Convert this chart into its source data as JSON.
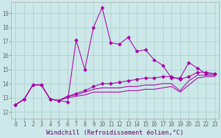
{
  "background_color": "#cce8e8",
  "grid_color": "#aacccc",
  "line_color": "#aa00aa",
  "x_values": [
    0,
    1,
    2,
    3,
    4,
    5,
    6,
    7,
    8,
    9,
    10,
    11,
    12,
    13,
    14,
    15,
    16,
    17,
    18,
    19,
    20,
    21,
    22,
    23
  ],
  "series1": [
    12.5,
    12.9,
    13.9,
    13.9,
    12.9,
    12.8,
    12.7,
    17.1,
    15.0,
    18.0,
    19.4,
    16.9,
    16.8,
    17.3,
    16.3,
    16.4,
    15.7,
    15.3,
    14.4,
    14.4,
    15.5,
    15.1,
    14.7,
    14.7
  ],
  "series2": [
    12.5,
    12.9,
    13.9,
    13.9,
    12.9,
    12.8,
    13.1,
    13.3,
    13.5,
    13.8,
    14.0,
    14.0,
    14.1,
    14.2,
    14.3,
    14.4,
    14.4,
    14.5,
    14.5,
    14.3,
    14.5,
    14.8,
    14.8,
    14.7
  ],
  "series3": [
    12.5,
    12.9,
    13.9,
    13.9,
    12.9,
    12.8,
    13.1,
    13.2,
    13.4,
    13.6,
    13.7,
    13.7,
    13.7,
    13.8,
    13.8,
    13.9,
    13.9,
    14.0,
    14.0,
    13.5,
    14.2,
    14.6,
    14.6,
    14.6
  ],
  "series4": [
    12.5,
    12.9,
    13.9,
    13.9,
    12.9,
    12.8,
    13.0,
    13.1,
    13.2,
    13.4,
    13.4,
    13.4,
    13.4,
    13.5,
    13.5,
    13.6,
    13.6,
    13.7,
    13.8,
    13.4,
    13.9,
    14.4,
    14.5,
    14.5
  ],
  "ylabel_values": [
    12,
    13,
    14,
    15,
    16,
    17,
    18,
    19
  ],
  "xlabel": "Windchill (Refroidissement éolien,°C)",
  "ylim": [
    11.5,
    19.8
  ],
  "xlim": [
    -0.5,
    23.5
  ],
  "marker": "D",
  "markersize": 2.5,
  "linewidth": 0.8,
  "xlabel_fontsize": 6.5,
  "tick_fontsize": 5.5
}
